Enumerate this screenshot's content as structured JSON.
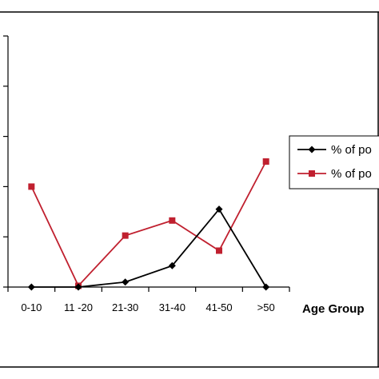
{
  "chart_data": {
    "type": "line",
    "categories": [
      "0-10",
      "11 -20",
      "21-30",
      "31-40",
      "41-50",
      ">50"
    ],
    "xlabel": "Age Group",
    "ylim": [
      0,
      10
    ],
    "grid": false,
    "legend_position": "right",
    "series": [
      {
        "name": "% of po",
        "color": "#000000",
        "marker": "diamond",
        "values": [
          0,
          0,
          0.2,
          0.85,
          3.1,
          0
        ]
      },
      {
        "name": "% of po",
        "color": "#c0202f",
        "marker": "square",
        "values": [
          4.0,
          0.05,
          2.05,
          2.65,
          1.45,
          5.0
        ]
      }
    ]
  }
}
